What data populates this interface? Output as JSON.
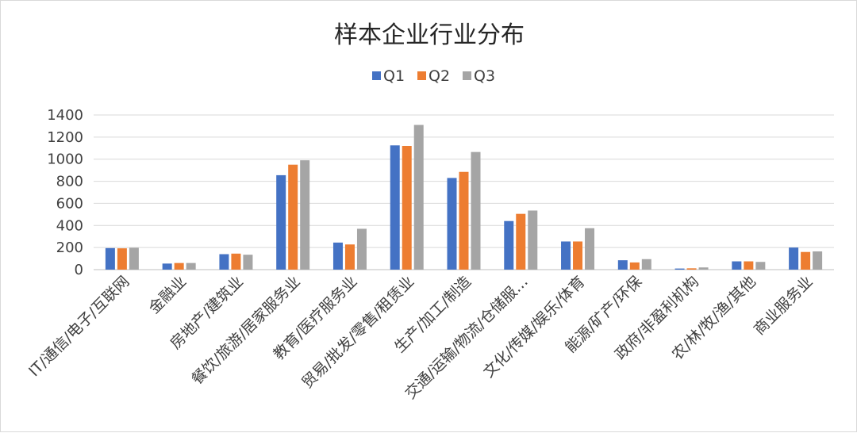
{
  "chart_data": {
    "type": "bar",
    "title": "样本企业行业分布",
    "xlabel": "",
    "ylabel": "",
    "ylim": [
      0,
      1400
    ],
    "yticks": [
      0,
      200,
      400,
      600,
      800,
      1000,
      1200,
      1400
    ],
    "grid": true,
    "legend_position": "top",
    "categories": [
      "IT/通信/电子/互联网",
      "金融业",
      "房地产/建筑业",
      "餐饮/旅游/居家服务业",
      "教育/医疗服务业",
      "贸易/批发/零售/租赁业",
      "生产/加工/制造",
      "交通/运输/物流/仓储服…",
      "文化/传媒/娱乐/体育",
      "能源/矿产/环保",
      "政府/非盈利机构",
      "农/林/牧/渔/其他",
      "商业服务业"
    ],
    "series": [
      {
        "name": "Q1",
        "color": "#4472c4",
        "values": [
          195,
          55,
          140,
          855,
          245,
          1125,
          830,
          440,
          255,
          85,
          10,
          75,
          200
        ]
      },
      {
        "name": "Q2",
        "color": "#ed7d31",
        "values": [
          193,
          60,
          145,
          950,
          228,
          1120,
          885,
          505,
          255,
          65,
          12,
          75,
          160
        ]
      },
      {
        "name": "Q3",
        "color": "#a5a5a5",
        "values": [
          198,
          60,
          135,
          990,
          370,
          1310,
          1065,
          535,
          375,
          95,
          20,
          70,
          165
        ]
      }
    ]
  }
}
